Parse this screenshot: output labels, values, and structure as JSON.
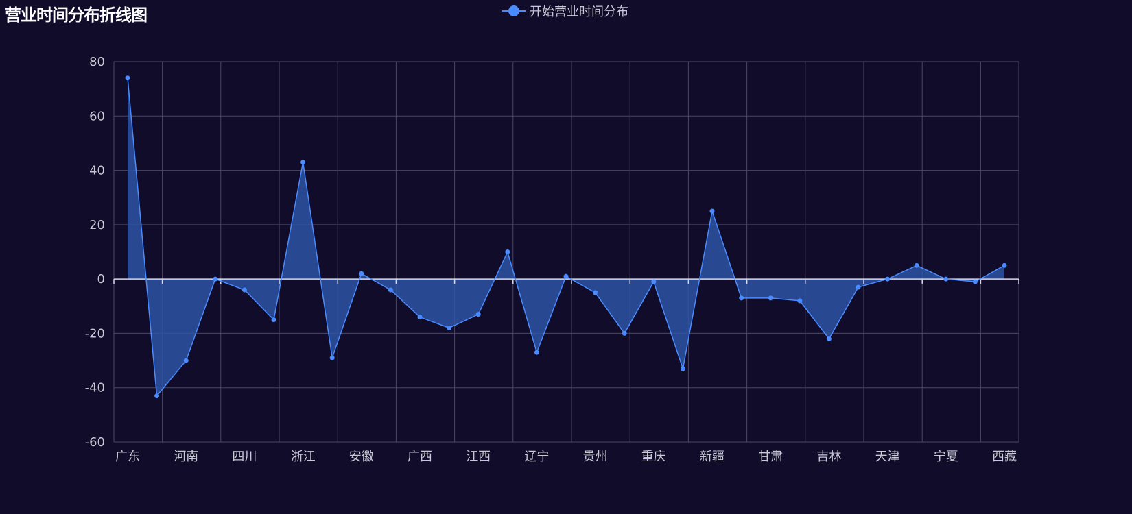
{
  "title": "营业时间分布折线图",
  "legend": {
    "label": "开始营业时间分布",
    "color": "#4a8bff"
  },
  "colors": {
    "background": "#100c2a",
    "line": "#4a8bff",
    "area": "#2d55a3",
    "grid": "#4b4766",
    "zero_axis": "#d9d9e6",
    "label": "#c9c9d6"
  },
  "chart_data": {
    "type": "line",
    "area_fill": true,
    "title": "营业时间分布折线图",
    "xlabel": "",
    "ylabel": "",
    "ylim": [
      -60,
      80
    ],
    "yticks": [
      80,
      60,
      40,
      20,
      0,
      -20,
      -40,
      -60
    ],
    "grid": true,
    "legend_position": "top-center",
    "categories": [
      "广东",
      "",
      "河南",
      "",
      "四川",
      "",
      "浙江",
      "",
      "安徽",
      "",
      "广西",
      "",
      "江西",
      "",
      "辽宁",
      "",
      "贵州",
      "",
      "重庆",
      "",
      "新疆",
      "",
      "甘肃",
      "",
      "吉林",
      "",
      "天津",
      "",
      "宁夏",
      "",
      "西藏"
    ],
    "xtick_labels": [
      "广东",
      "河南",
      "四川",
      "浙江",
      "安徽",
      "广西",
      "江西",
      "辽宁",
      "贵州",
      "重庆",
      "新疆",
      "甘肃",
      "吉林",
      "天津",
      "宁夏",
      "西藏"
    ],
    "series": [
      {
        "name": "开始营业时间分布",
        "values": [
          74,
          -43,
          -30,
          0,
          -4,
          -15,
          43,
          -29,
          2,
          -4,
          -14,
          -18,
          -13,
          10,
          -27,
          1,
          -5,
          -20,
          -1,
          -33,
          25,
          -7,
          -7,
          -8,
          -22,
          -3,
          0,
          5,
          0,
          -1,
          5
        ]
      }
    ]
  }
}
